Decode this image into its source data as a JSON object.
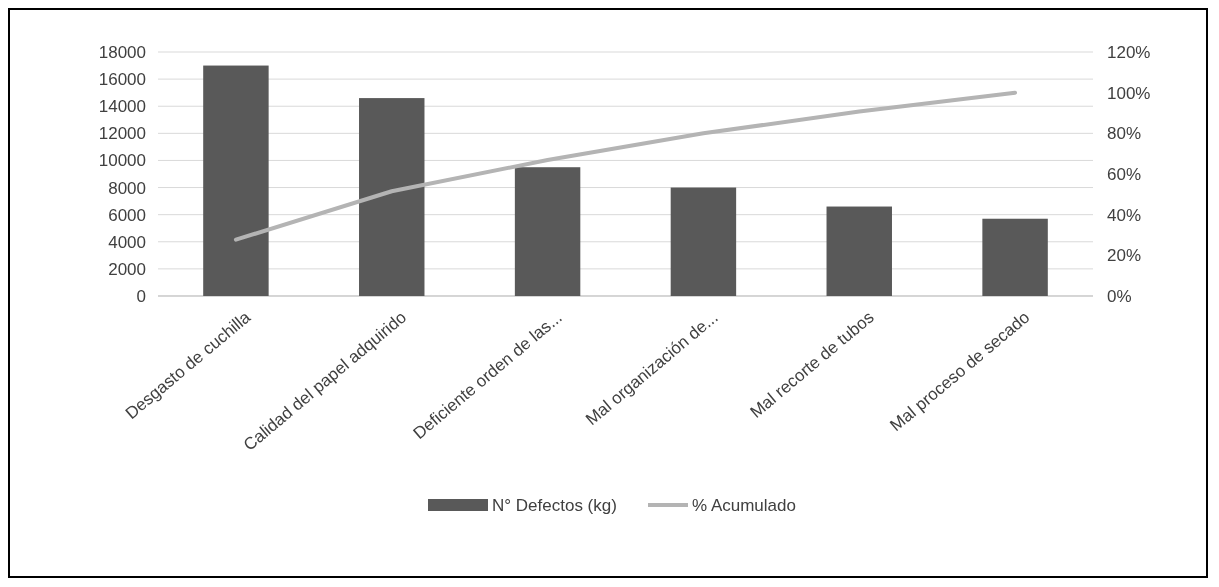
{
  "chart_data": {
    "type": "bar",
    "categories": [
      "Desgasto de cuchilla",
      "Calidad del papel adquirido",
      "Deficiente orden de las...",
      "Mal organización de...",
      "Mal recorte de tubos",
      "Mal proceso de secado"
    ],
    "series": [
      {
        "name": "N° Defectos (kg)",
        "color": "#595959",
        "values": [
          17000,
          14600,
          9500,
          8000,
          6600,
          5700
        ]
      },
      {
        "name": "% Acumulado",
        "type": "line",
        "axis": "y2",
        "color": "#b4b4b4",
        "values": [
          27.7,
          51.5,
          66.9,
          80.0,
          90.7,
          100
        ]
      }
    ],
    "ylim": [
      0,
      18000
    ],
    "yticks": [
      0,
      2000,
      4000,
      6000,
      8000,
      10000,
      12000,
      14000,
      16000,
      18000
    ],
    "y2lim": [
      0,
      120
    ],
    "y2ticks": [
      {
        "value": 0,
        "label": "0%"
      },
      {
        "value": 20,
        "label": "20%"
      },
      {
        "value": 40,
        "label": "40%"
      },
      {
        "value": 60,
        "label": "60%"
      },
      {
        "value": 80,
        "label": "80%"
      },
      {
        "value": 100,
        "label": "100%"
      },
      {
        "value": 120,
        "label": "120%"
      }
    ],
    "grid": "y",
    "legend": "bottom",
    "marker": "none",
    "line_style": "solid"
  }
}
